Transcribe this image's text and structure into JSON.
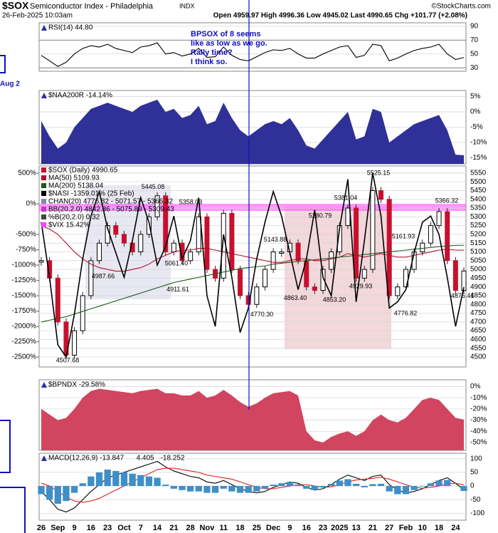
{
  "header": {
    "symbol": "$SOX",
    "name": "Semiconductor Index - Philadelphia",
    "exchange": "INDX",
    "date": "26-Feb-2025 10:03am",
    "quote": "Open 4959.97  High 4996.36  Low 4945.02  Last 4990.65  Chg +101.77 (+2.08%)",
    "credit": "©StockCharts.com"
  },
  "annotation": {
    "text": [
      "BPSOX of 8 seems",
      "like as low as we go.",
      "Rally time?",
      "I think so."
    ],
    "side_note": "Aug 2"
  },
  "chart_data": [
    {
      "type": "line",
      "ylim": [
        25,
        95
      ],
      "yticks": [
        30,
        50,
        70,
        90
      ],
      "grid": true,
      "series": [
        {
          "name": "RSI(14) 44.80",
          "color": "#000000",
          "type": "line",
          "values": [
            48,
            40,
            32,
            38,
            50,
            58,
            62,
            60,
            64,
            58,
            55,
            52,
            60,
            62,
            66,
            50,
            52,
            47,
            50,
            58,
            45,
            46,
            60,
            48,
            42,
            40,
            46,
            52,
            56,
            55,
            58,
            50,
            44,
            44,
            50,
            55,
            60,
            62,
            45,
            48,
            64,
            62,
            40,
            44,
            50,
            55,
            58,
            60,
            64,
            50,
            42,
            44.8
          ]
        }
      ]
    },
    {
      "type": "area",
      "ylim": [
        -17,
        7
      ],
      "yticks": [
        {
          "value": 5,
          "label": "5%"
        },
        {
          "value": 0,
          "label": "0%"
        },
        {
          "value": -5,
          "label": "-5%"
        },
        {
          "value": -10,
          "label": "-10%"
        },
        {
          "value": -15,
          "label": "-15%"
        }
      ],
      "grid": true,
      "series": [
        {
          "name": "$NAA200R -14.14%",
          "color": "#303099",
          "type": "area",
          "values": [
            -3,
            -8,
            -12,
            -10,
            -5,
            -2,
            1,
            2,
            3,
            2,
            1,
            0,
            2,
            3,
            4,
            0,
            1,
            -2,
            -1,
            2,
            -4,
            -3,
            3,
            -2,
            -6,
            -8,
            -6,
            -4,
            -3,
            -4,
            -2,
            -6,
            -11,
            -12,
            -9,
            -6,
            -3,
            0,
            -9,
            -8,
            1,
            0,
            -10,
            -8,
            -6,
            -4,
            -3,
            -2,
            -1,
            -6,
            -14,
            -14.14
          ]
        }
      ]
    },
    {
      "type": "line",
      "ylim": [
        4443,
        5590
      ],
      "yticks": [
        5550,
        5500,
        5450,
        5400,
        5350,
        5300,
        5250,
        5200,
        5150,
        5100,
        5050,
        5000,
        4950,
        4900,
        4850,
        4800,
        4750,
        4700,
        4650,
        4600,
        4550,
        4500
      ],
      "y2lim": [
        -2662,
        616
      ],
      "y2ticks": [
        {
          "value": 500,
          "label": "500%"
        },
        {
          "value": 0,
          "label": "0%"
        },
        {
          "value": -500,
          "label": "-500%"
        },
        {
          "value": -750,
          "label": "-750%"
        },
        {
          "value": -1000,
          "label": "-1000%"
        },
        {
          "value": -1250,
          "label": "-1250%"
        },
        {
          "value": -1500,
          "label": "-1500%"
        },
        {
          "value": -1750,
          "label": "-1750%"
        },
        {
          "value": -2000,
          "label": "-2000%"
        },
        {
          "value": -2250,
          "label": "-2250%"
        },
        {
          "value": -2500,
          "label": "-2500%"
        }
      ],
      "grid": true,
      "categories": [
        "26",
        null,
        "Sep",
        null,
        "9",
        null,
        "16",
        null,
        "23",
        null,
        "Oct",
        null,
        "7",
        null,
        "14",
        null,
        "21",
        null,
        "28",
        null,
        "Nov",
        null,
        "11",
        null,
        "18",
        null,
        "25",
        null,
        "Dec",
        null,
        "9",
        null,
        "16",
        null,
        "23",
        null,
        "2025",
        null,
        "13",
        null,
        "21",
        null,
        "27",
        null,
        "Feb",
        null,
        "10",
        null,
        "18",
        null,
        "24",
        null
      ],
      "series": [
        {
          "name": "$SOX (Daily) 4990.65",
          "color": "#c8102e",
          "type": "body",
          "values": [
            5050,
            4950,
            4700,
            4510,
            4650,
            4850,
            5050,
            5150,
            5250,
            5200,
            5150,
            5100,
            5200,
            5300,
            5420,
            5100,
            5150,
            5050,
            5100,
            5300,
            5000,
            4950,
            5320,
            5000,
            4850,
            4800,
            4900,
            5000,
            5100,
            5100,
            5150,
            5050,
            4900,
            4880,
            5000,
            5100,
            5250,
            5350,
            4950,
            5000,
            5450,
            5400,
            4850,
            4900,
            5000,
            5100,
            5150,
            5250,
            5330,
            5050,
            4880,
            4990.65
          ]
        },
        {
          "name": "MA(50) 5109.93",
          "color": "#b01030",
          "type": "line",
          "values": [
            5250,
            5230,
            5200,
            5150,
            5100,
            5060,
            5030,
            5010,
            5000,
            4990,
            4990,
            5000,
            5010,
            5030,
            5060,
            5080,
            5100,
            5110,
            5110,
            5120,
            5120,
            5110,
            5100,
            5090,
            5080,
            5070,
            5060,
            5050,
            5040,
            5040,
            5050,
            5060,
            5060,
            5050,
            5050,
            5060,
            5070,
            5090,
            5080,
            5070,
            5080,
            5090,
            5080,
            5070,
            5070,
            5080,
            5090,
            5100,
            5110,
            5115,
            5110,
            5109.93
          ]
        },
        {
          "name": "MA(200) 5138.04",
          "color": "#1f5a1f",
          "type": "line",
          "values": [
            4700,
            4710,
            4720,
            4730,
            4745,
            4760,
            4775,
            4790,
            4805,
            4820,
            4835,
            4850,
            4865,
            4880,
            4895,
            4910,
            4925,
            4935,
            4945,
            4955,
            4965,
            4975,
            4985,
            4995,
            5005,
            5010,
            5015,
            5020,
            5030,
            5035,
            5040,
            5045,
            5050,
            5055,
            5060,
            5065,
            5070,
            5075,
            5080,
            5085,
            5090,
            5095,
            5100,
            5105,
            5110,
            5115,
            5120,
            5125,
            5130,
            5134,
            5137,
            5138.04
          ]
        },
        {
          "name": "$NASI -1359.01% (25 Feb)",
          "color": "#000000",
          "type": "line",
          "axis": "y2",
          "values": [
            -300,
            -1200,
            -2300,
            -2500,
            -1800,
            -900,
            -200,
            200,
            -400,
            -800,
            -1200,
            -600,
            100,
            -300,
            -1000,
            -700,
            -200,
            -900,
            -600,
            100,
            -1500,
            -2000,
            -500,
            -1200,
            -2100,
            -1700,
            -900,
            -300,
            200,
            -200,
            -800,
            -1400,
            -900,
            -100,
            -1200,
            -1500,
            -400,
            400,
            -1600,
            -600,
            500,
            -200,
            -1700,
            -1600,
            -1400,
            -800,
            -300,
            -200,
            -500,
            -1200,
            -2000,
            -1359.01
          ]
        }
      ],
      "legend": [
        "CHAN(20) 4776.82 - 5071.57 - 5366.32",
        "BB(20,2.0) 4842.36 - 5075.89 - 5309.43",
        "%B(20,2.0) 0.32",
        "$VIX 15.42%"
      ],
      "point_labels": [
        4507.68,
        5445.08,
        5358.03,
        {
          "value": 5061.4,
          "label": "5061.40"
        },
        4911.61,
        4987.66,
        5143.88,
        5280.79,
        5381.04,
        5525.15,
        {
          "value": 4770.3,
          "label": "4770.30"
        },
        {
          "value": 4863.4,
          "label": "4863.40"
        },
        {
          "value": 4853.2,
          "label": "4853.20"
        },
        4929.93,
        5161.93,
        4776.82,
        5366.32,
        4876.41
      ]
    },
    {
      "type": "area",
      "ylim": [
        -57,
        6
      ],
      "yticks": [
        {
          "value": 0,
          "label": "0%"
        },
        {
          "value": -10,
          "label": "-10%"
        },
        {
          "value": -20,
          "label": "-20%"
        },
        {
          "value": -30,
          "label": "-30%"
        },
        {
          "value": -40,
          "label": "-40%"
        },
        {
          "value": -50,
          "label": "-50%"
        }
      ],
      "grid": true,
      "series": [
        {
          "name": "$BPNDX -29.58%",
          "color": "#d24560",
          "type": "area",
          "values": [
            -20,
            -25,
            -30,
            -28,
            -20,
            -10,
            -4,
            -2,
            -3,
            -4,
            -5,
            -6,
            -4,
            -3,
            -2,
            -6,
            -6,
            -8,
            -8,
            -4,
            -10,
            -8,
            -3,
            -8,
            -14,
            -18,
            -15,
            -10,
            -6,
            -5,
            -4,
            -8,
            -40,
            -48,
            -50,
            -45,
            -42,
            -40,
            -44,
            -40,
            -30,
            -25,
            -30,
            -32,
            -28,
            -20,
            -12,
            -10,
            -12,
            -20,
            -28,
            -29.58
          ]
        }
      ]
    },
    {
      "type": "line",
      "ylim": [
        -125,
        120
      ],
      "yticks": [
        100,
        50,
        0,
        -50,
        -100
      ],
      "grid": true,
      "categories": [
        "26",
        null,
        "Sep",
        null,
        "9",
        null,
        "16",
        null,
        "23",
        null,
        "Oct",
        null,
        "7",
        null,
        "14",
        null,
        "21",
        null,
        "28",
        null,
        "Nov",
        null,
        "11",
        null,
        "18",
        null,
        "25",
        null,
        "Dec",
        null,
        "9",
        null,
        "16",
        null,
        "23",
        null,
        "2025",
        null,
        "13",
        null,
        "21",
        null,
        "27",
        null,
        "Feb",
        null,
        "10",
        null,
        "18",
        null,
        "24",
        null
      ],
      "series": [
        {
          "name": "MACD(12,26,9) -13.847",
          "color": "#000000",
          "type": "line",
          "values": [
            -20,
            -50,
            -85,
            -95,
            -80,
            -50,
            -20,
            5,
            30,
            40,
            50,
            60,
            70,
            80,
            90,
            70,
            55,
            45,
            35,
            30,
            15,
            10,
            20,
            5,
            -10,
            -20,
            -25,
            -20,
            -5,
            5,
            15,
            10,
            -5,
            -15,
            -10,
            5,
            25,
            40,
            30,
            20,
            35,
            40,
            5,
            -15,
            -25,
            -20,
            -10,
            5,
            20,
            30,
            10,
            -13.847
          ]
        },
        {
          "name": "4.405",
          "color": "#e02020",
          "type": "line",
          "values": [
            10,
            0,
            -20,
            -40,
            -55,
            -60,
            -55,
            -45,
            -30,
            -15,
            0,
            15,
            30,
            45,
            60,
            65,
            65,
            60,
            55,
            50,
            40,
            35,
            30,
            25,
            15,
            5,
            -5,
            -10,
            -10,
            -5,
            0,
            5,
            5,
            0,
            -5,
            -3,
            5,
            15,
            22,
            25,
            28,
            32,
            25,
            15,
            5,
            -5,
            -8,
            -5,
            0,
            8,
            10,
            4.405
          ]
        },
        {
          "name": "-18.252",
          "color": "#3f8fc7",
          "type": "bar",
          "values": [
            -30,
            -50,
            -65,
            -55,
            -25,
            10,
            35,
            50,
            60,
            55,
            50,
            45,
            40,
            35,
            30,
            5,
            -10,
            -15,
            -20,
            -20,
            -25,
            -25,
            -10,
            -20,
            -25,
            -25,
            -20,
            -10,
            5,
            10,
            15,
            5,
            -10,
            -15,
            -5,
            8,
            20,
            25,
            8,
            -5,
            7,
            8,
            -20,
            -30,
            -30,
            -15,
            -2,
            10,
            20,
            22,
            0,
            -18.252
          ]
        }
      ]
    }
  ]
}
